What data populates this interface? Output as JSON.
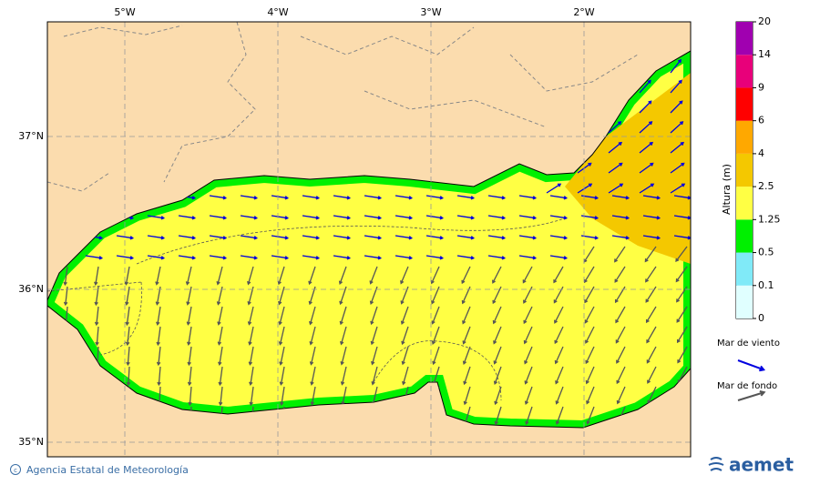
{
  "map": {
    "lon_labels": [
      "5°W",
      "4°W",
      "3°W",
      "2°W"
    ],
    "lat_labels": [
      "37°N",
      "36°N",
      "35°N"
    ],
    "colorbar": {
      "title": "Altura (m)",
      "labels": [
        "0",
        "0.1",
        "0.5",
        "1.25",
        "2.5",
        "4",
        "6",
        "9",
        "14",
        "20"
      ],
      "colors": [
        "#e0ffff",
        "#80eaf8",
        "#00f000",
        "#ffff44",
        "#f4c800",
        "#ffa800",
        "#ff0000",
        "#e8007a",
        "#a000b0"
      ]
    },
    "legend": [
      {
        "label": "Mar de viento",
        "color": "#0000e0"
      },
      {
        "label": "Mar de fondo",
        "color": "#555555"
      }
    ],
    "credit": "Agencia Estatal de Meteorología",
    "logo": "aemet"
  }
}
